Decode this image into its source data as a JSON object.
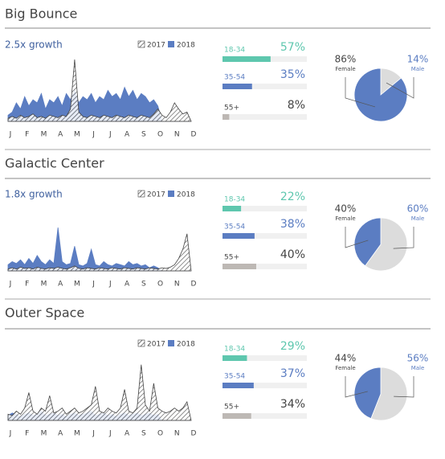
{
  "chart_data": [
    {
      "type": "area",
      "title": "Big Bounce",
      "subtitle": "2.5x growth",
      "categories": [
        "J",
        null,
        null,
        null,
        "F",
        null,
        null,
        null,
        "M",
        null,
        null,
        null,
        "A",
        null,
        null,
        null,
        "M",
        null,
        null,
        null,
        "J",
        null,
        null,
        null,
        "J",
        null,
        null,
        null,
        "A",
        null,
        null,
        null,
        "S",
        null,
        null,
        null,
        "O",
        null,
        null,
        null,
        "N",
        null,
        null,
        null,
        "D"
      ],
      "series": [
        {
          "name": "2018",
          "color": "#5b7dc2",
          "values": [
            10,
            15,
            30,
            20,
            40,
            25,
            35,
            30,
            45,
            20,
            35,
            30,
            40,
            25,
            45,
            35,
            50,
            30,
            40,
            35,
            45,
            30,
            40,
            35,
            50,
            40,
            45,
            35,
            55,
            40,
            50,
            35,
            45,
            40,
            30,
            35,
            25,
            0,
            0,
            0,
            0,
            0,
            0,
            0,
            0
          ]
        },
        {
          "name": "2017",
          "color": "#444444",
          "values": [
            5,
            8,
            5,
            10,
            6,
            8,
            12,
            6,
            8,
            5,
            10,
            8,
            6,
            10,
            8,
            20,
            100,
            15,
            8,
            6,
            10,
            8,
            6,
            10,
            8,
            6,
            10,
            8,
            6,
            10,
            8,
            6,
            10,
            8,
            6,
            12,
            20,
            10,
            6,
            15,
            30,
            20,
            12,
            15,
            0
          ]
        }
      ],
      "ylim": [
        0,
        100
      ]
    },
    {
      "type": "hbar",
      "categories": [
        "18-34",
        "35-54",
        "55+"
      ],
      "values": [
        57,
        35,
        8
      ],
      "value_labels": [
        "57%",
        "35%",
        "8%"
      ],
      "colors": [
        "#5ec7ae",
        "#5b7dc2",
        "#bdb8b4"
      ],
      "xlim": [
        0,
        100
      ]
    },
    {
      "type": "pie",
      "categories": [
        "Female",
        "Male"
      ],
      "values": [
        86,
        14
      ],
      "value_labels": [
        "86%",
        "14%"
      ],
      "colors": [
        "#5b7dc2",
        "#dcdcdc"
      ]
    },
    {
      "type": "area",
      "title": "Galactic Center",
      "subtitle": "1.8x growth",
      "categories": [
        "J",
        null,
        null,
        null,
        "F",
        null,
        null,
        null,
        "M",
        null,
        null,
        null,
        "A",
        null,
        null,
        null,
        "M",
        null,
        null,
        null,
        "J",
        null,
        null,
        null,
        "J",
        null,
        null,
        null,
        "A",
        null,
        null,
        null,
        "S",
        null,
        null,
        null,
        "O",
        null,
        null,
        null,
        "N",
        null,
        null,
        null,
        "D"
      ],
      "series": [
        {
          "name": "2018",
          "color": "#5b7dc2",
          "values": [
            10,
            15,
            12,
            18,
            10,
            20,
            12,
            25,
            15,
            10,
            18,
            12,
            70,
            15,
            10,
            12,
            40,
            10,
            8,
            12,
            35,
            10,
            8,
            15,
            10,
            8,
            12,
            10,
            8,
            15,
            10,
            12,
            8,
            10,
            5,
            8,
            5,
            0,
            0,
            0,
            0,
            0,
            0,
            0,
            0
          ]
        },
        {
          "name": "2017",
          "color": "#444444",
          "values": [
            3,
            5,
            3,
            6,
            4,
            5,
            3,
            6,
            4,
            3,
            5,
            4,
            6,
            4,
            3,
            5,
            8,
            4,
            3,
            5,
            4,
            3,
            5,
            4,
            3,
            5,
            4,
            3,
            5,
            4,
            3,
            5,
            4,
            3,
            5,
            4,
            3,
            5,
            4,
            6,
            10,
            20,
            35,
            60,
            0
          ]
        }
      ],
      "ylim": [
        0,
        100
      ]
    },
    {
      "type": "hbar",
      "categories": [
        "18-34",
        "35-54",
        "55+"
      ],
      "values": [
        22,
        38,
        40
      ],
      "value_labels": [
        "22%",
        "38%",
        "40%"
      ],
      "colors": [
        "#5ec7ae",
        "#5b7dc2",
        "#bdb8b4"
      ],
      "xlim": [
        0,
        100
      ]
    },
    {
      "type": "pie",
      "categories": [
        "Female",
        "Male"
      ],
      "values": [
        40,
        60
      ],
      "value_labels": [
        "40%",
        "60%"
      ],
      "colors": [
        "#5b7dc2",
        "#dcdcdc"
      ]
    },
    {
      "type": "area",
      "title": "Outer Space",
      "categories": [
        "J",
        null,
        null,
        null,
        "F",
        null,
        null,
        null,
        "M",
        null,
        null,
        null,
        "A",
        null,
        null,
        null,
        "M",
        null,
        null,
        null,
        "J",
        null,
        null,
        null,
        "J",
        null,
        null,
        null,
        "A",
        null,
        null,
        null,
        "S",
        null,
        null,
        null,
        "O",
        null,
        null,
        null,
        "N",
        null,
        null,
        null,
        "D"
      ],
      "series": [
        {
          "name": "2018",
          "color": "#5b7dc2",
          "values": [
            8,
            12,
            10,
            6,
            10,
            12,
            8,
            10,
            15,
            8,
            10,
            12,
            8,
            10,
            6,
            10,
            12,
            8,
            10,
            12,
            15,
            8,
            10,
            12,
            8,
            10,
            6,
            10,
            12,
            8,
            10,
            12,
            8,
            10,
            12,
            8,
            10,
            0,
            0,
            0,
            0,
            0,
            0,
            0,
            0
          ]
        },
        {
          "name": "2017",
          "color": "#444444",
          "values": [
            10,
            8,
            15,
            10,
            20,
            45,
            15,
            10,
            20,
            15,
            40,
            12,
            15,
            20,
            10,
            15,
            20,
            12,
            15,
            20,
            25,
            55,
            15,
            12,
            20,
            15,
            12,
            20,
            50,
            15,
            12,
            20,
            90,
            25,
            15,
            60,
            20,
            15,
            12,
            15,
            20,
            15,
            20,
            30,
            0
          ]
        }
      ],
      "ylim": [
        0,
        100
      ]
    },
    {
      "type": "hbar",
      "categories": [
        "18-34",
        "35-54",
        "55+"
      ],
      "values": [
        29,
        37,
        34
      ],
      "value_labels": [
        "29%",
        "37%",
        "34%"
      ],
      "colors": [
        "#5ec7ae",
        "#5b7dc2",
        "#bdb8b4"
      ],
      "xlim": [
        0,
        100
      ]
    },
    {
      "type": "pie",
      "categories": [
        "Female",
        "Male"
      ],
      "values": [
        44,
        56
      ],
      "value_labels": [
        "44%",
        "56%"
      ],
      "colors": [
        "#5b7dc2",
        "#dcdcdc"
      ]
    }
  ]
}
